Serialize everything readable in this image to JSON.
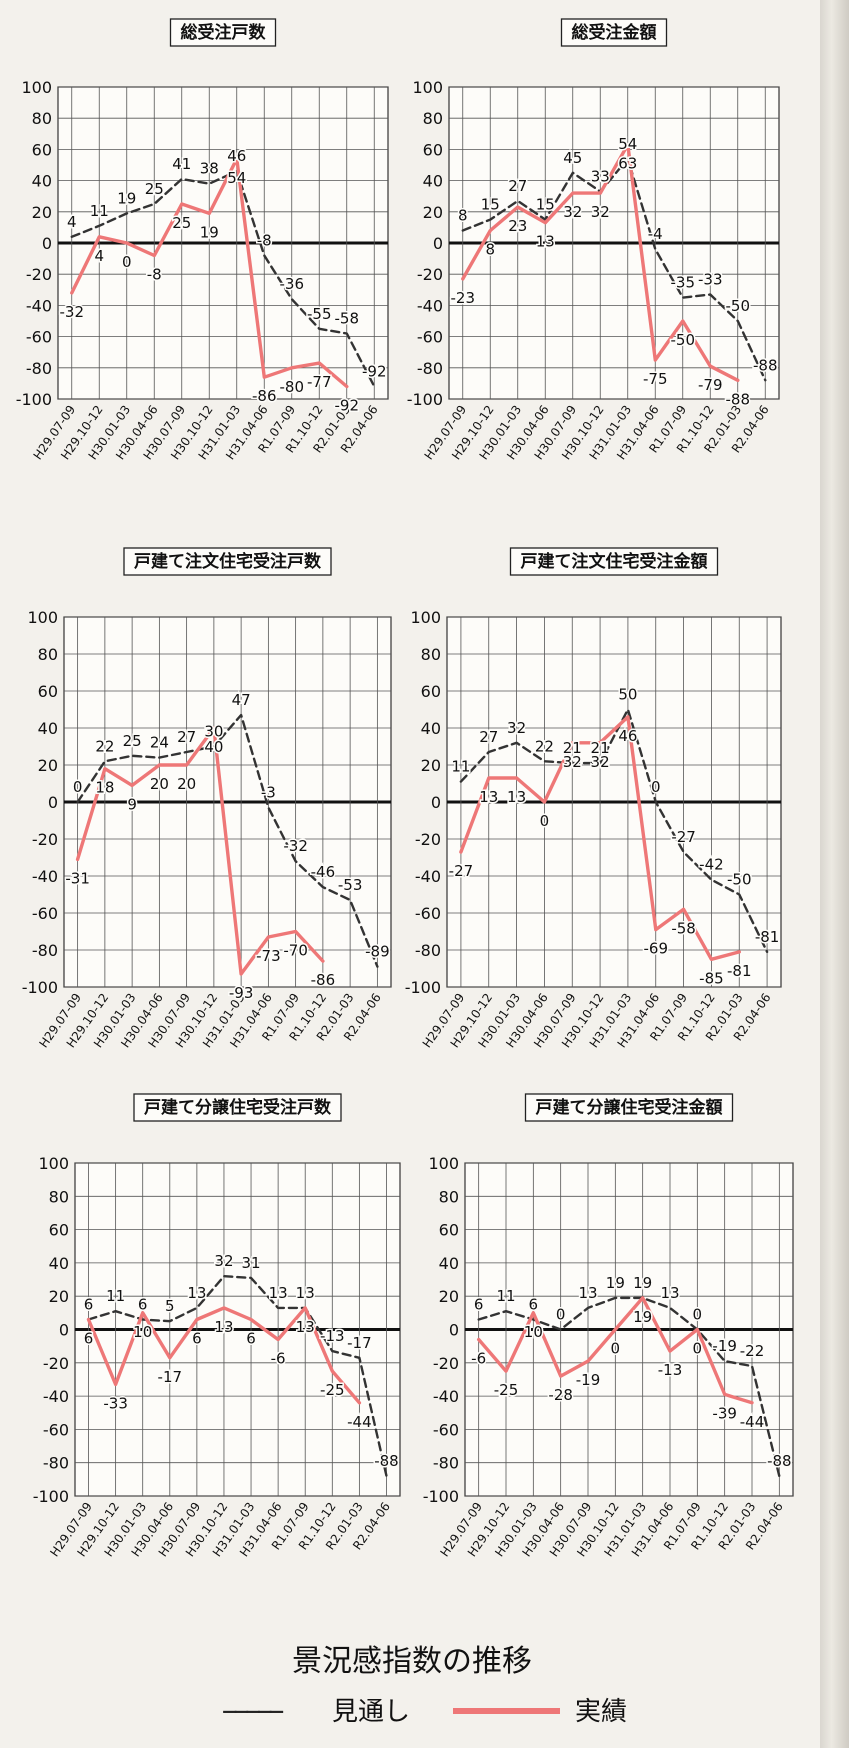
{
  "figure": {
    "title": "景況感指数の推移",
    "legend": {
      "forecast_dashes": "−−−−−",
      "forecast_label": "見通し",
      "actual_label": "実績"
    }
  },
  "chart_data": [
    {
      "type": "line",
      "title": "総受注戸数",
      "categories": [
        "H29.07-09",
        "H29.10-12",
        "H30.01-03",
        "H30.04-06",
        "H30.07-09",
        "H30.10-12",
        "H31.01-03",
        "H31.04-06",
        "R1.07-09",
        "R1.10-12",
        "R2.01-03",
        "R2.04-06"
      ],
      "ylim": [
        -100,
        100
      ],
      "yticks": [
        100,
        80,
        60,
        40,
        20,
        0,
        -20,
        -40,
        -60,
        -80,
        -100
      ],
      "series": [
        {
          "name": "見通し",
          "style": "dashed",
          "color": "#333333",
          "values": [
            4,
            11,
            19,
            25,
            41,
            38,
            46,
            -8,
            -36,
            -55,
            -58,
            -92
          ]
        },
        {
          "name": "実績",
          "style": "solid",
          "color": "#ee7777",
          "values": [
            -32,
            4,
            0,
            -8,
            25,
            19,
            54,
            -86,
            -80,
            -77,
            -92,
            null
          ]
        }
      ]
    },
    {
      "type": "line",
      "title": "総受注金額",
      "categories": [
        "H29.07-09",
        "H29.10-12",
        "H30.01-03",
        "H30.04-06",
        "H30.07-09",
        "H30.10-12",
        "H31.01-03",
        "H31.04-06",
        "R1.07-09",
        "R1.10-12",
        "R2.01-03",
        "R2.04-06"
      ],
      "ylim": [
        -100,
        100
      ],
      "yticks": [
        100,
        80,
        60,
        40,
        20,
        0,
        -20,
        -40,
        -60,
        -80,
        -100
      ],
      "series": [
        {
          "name": "見通し",
          "style": "dashed",
          "color": "#333333",
          "values": [
            8,
            15,
            27,
            15,
            45,
            33,
            54,
            -4,
            -35,
            -33,
            -50,
            -88
          ]
        },
        {
          "name": "実績",
          "style": "solid",
          "color": "#ee7777",
          "values": [
            -23,
            8,
            23,
            13,
            32,
            32,
            63,
            -75,
            -50,
            -79,
            -88,
            null
          ]
        }
      ]
    },
    {
      "type": "line",
      "title": "戸建て注文住宅受注戸数",
      "categories": [
        "H29.07-09",
        "H29.10-12",
        "H30.01-03",
        "H30.04-06",
        "H30.07-09",
        "H30.10-12",
        "H31.01-03",
        "H31.04-06",
        "R1.07-09",
        "R1.10-12",
        "R2.01-03",
        "R2.04-06"
      ],
      "ylim": [
        -100,
        100
      ],
      "yticks": [
        100,
        80,
        60,
        40,
        20,
        0,
        -20,
        -40,
        -60,
        -80,
        -100
      ],
      "series": [
        {
          "name": "見通し",
          "style": "dashed",
          "color": "#333333",
          "values": [
            0,
            22,
            25,
            24,
            27,
            30,
            47,
            -3,
            -32,
            -46,
            -53,
            -89
          ]
        },
        {
          "name": "実績",
          "style": "solid",
          "color": "#ee7777",
          "values": [
            -31,
            18,
            9,
            20,
            20,
            40,
            -93,
            -73,
            -70,
            -86,
            null,
            null
          ]
        }
      ]
    },
    {
      "type": "line",
      "title": "戸建て注文住宅受注金額",
      "categories": [
        "H29.07-09",
        "H29.10-12",
        "H30.01-03",
        "H30.04-06",
        "H30.07-09",
        "H30.10-12",
        "H31.01-03",
        "H31.04-06",
        "R1.07-09",
        "R1.10-12",
        "R2.01-03",
        "R2.04-06"
      ],
      "ylim": [
        -100,
        100
      ],
      "yticks": [
        100,
        80,
        60,
        40,
        20,
        0,
        -20,
        -40,
        -60,
        -80,
        -100
      ],
      "series": [
        {
          "name": "見通し",
          "style": "dashed",
          "color": "#333333",
          "values": [
            11,
            27,
            32,
            22,
            21,
            21,
            50,
            0,
            -27,
            -42,
            -50,
            -81
          ]
        },
        {
          "name": "実績",
          "style": "solid",
          "color": "#ee7777",
          "values": [
            -27,
            13,
            13,
            0,
            32,
            32,
            46,
            -69,
            -58,
            -85,
            -81,
            null
          ]
        }
      ]
    },
    {
      "type": "line",
      "title": "戸建て分譲住宅受注戸数",
      "categories": [
        "H29.07-09",
        "H29.10-12",
        "H30.01-03",
        "H30.04-06",
        "H30.07-09",
        "H30.10-12",
        "H31.01-03",
        "H31.04-06",
        "R1.07-09",
        "R1.10-12",
        "R2.01-03",
        "R2.04-06"
      ],
      "ylim": [
        -100,
        100
      ],
      "yticks": [
        100,
        80,
        60,
        40,
        20,
        0,
        -20,
        -40,
        -60,
        -80,
        -100
      ],
      "series": [
        {
          "name": "見通し",
          "style": "dashed",
          "color": "#333333",
          "values": [
            6,
            11,
            6,
            5,
            13,
            32,
            31,
            13,
            13,
            -13,
            -17,
            -88
          ]
        },
        {
          "name": "実績",
          "style": "solid",
          "color": "#ee7777",
          "values": [
            6,
            -33,
            10,
            -17,
            6,
            13,
            6,
            -6,
            13,
            -25,
            -44,
            null
          ]
        }
      ]
    },
    {
      "type": "line",
      "title": "戸建て分譲住宅受注金額",
      "categories": [
        "H29.07-09",
        "H29.10-12",
        "H30.01-03",
        "H30.04-06",
        "H30.07-09",
        "H30.10-12",
        "H31.01-03",
        "H31.04-06",
        "R1.07-09",
        "R1.10-12",
        "R2.01-03",
        "R2.04-06"
      ],
      "ylim": [
        -100,
        100
      ],
      "yticks": [
        100,
        80,
        60,
        40,
        20,
        0,
        -20,
        -40,
        -60,
        -80,
        -100
      ],
      "series": [
        {
          "name": "見通し",
          "style": "dashed",
          "color": "#333333",
          "values": [
            6,
            11,
            6,
            0,
            13,
            19,
            19,
            13,
            0,
            -19,
            -22,
            -88
          ]
        },
        {
          "name": "実績",
          "style": "solid",
          "color": "#ee7777",
          "values": [
            -6,
            -25,
            10,
            -28,
            -19,
            0,
            19,
            -13,
            0,
            -39,
            -44,
            null
          ]
        }
      ]
    }
  ]
}
